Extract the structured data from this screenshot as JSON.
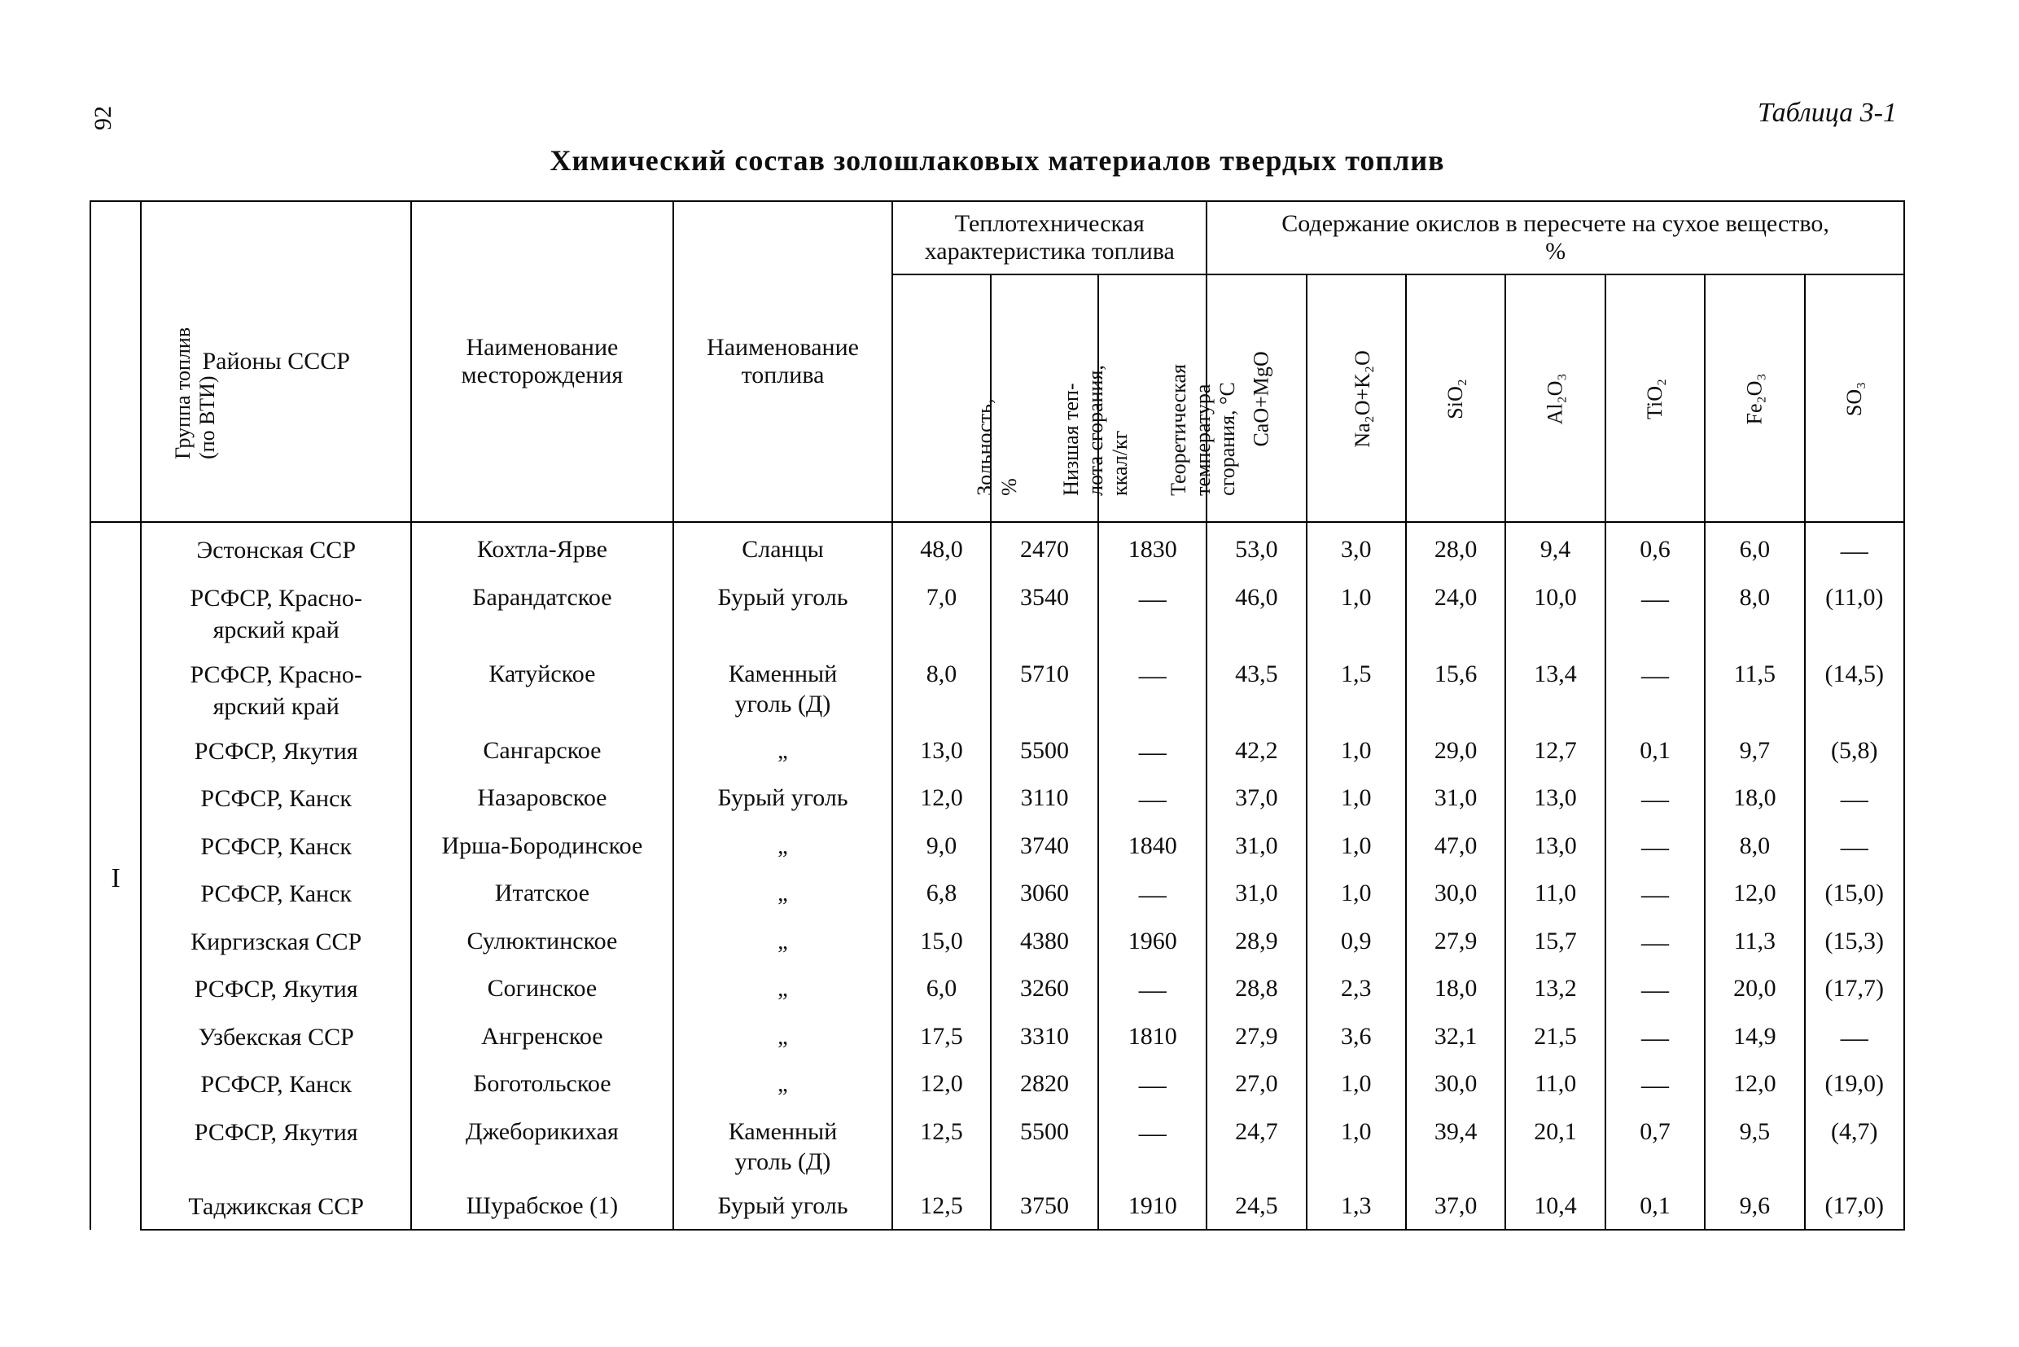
{
  "page_number": "92",
  "table_label": "Таблица 3-1",
  "title": "Химический состав золошлаковых материалов твердых топлив",
  "header": {
    "group": "Группа топлив\\n(по ВТИ)",
    "region": "Районы СССР",
    "deposit": "Наименование\\nместорождения",
    "fuel": "Наименование\\nтоплива",
    "thermal_group": "Теплотехническая\\nхарактеристика топлива",
    "oxide_group": "Содержание окислов в пересчете на сухое вещество,\\n%",
    "ash": "Зольность,\\n%",
    "lhv": "Низшая теп-\\nлота сгорания,\\nккал/кг",
    "temp": "Теоретическая\\nтемпература\\nсгорания, °С",
    "ox1": "CaO+MgO",
    "ox2": "Na₂O+K₂O",
    "ox3": "SiO₂",
    "ox4": "Al₂O₃",
    "ox5": "TiO₂",
    "ox6": "Fe₂O₃",
    "ox7": "SO₃"
  },
  "group_label": "I",
  "rows": [
    {
      "region": "Эстонская ССР",
      "deposit": "Кохтла-Ярве",
      "fuel": "Сланцы",
      "ash": "48,0",
      "lhv": "2470",
      "temp": "1830",
      "ox": [
        "53,0",
        "3,0",
        "28,0",
        "9,4",
        "0,6",
        "6,0",
        "—"
      ]
    },
    {
      "region": "РСФСР, Красно-\\nярский край",
      "deposit": "Барандатское",
      "fuel": "Бурый уголь",
      "ash": "7,0",
      "lhv": "3540",
      "temp": "—",
      "ox": [
        "46,0",
        "1,0",
        "24,0",
        "10,0",
        "—",
        "8,0",
        "(11,0)"
      ]
    },
    {
      "region": "РСФСР, Красно-\\nярский край",
      "deposit": "Катуйское",
      "fuel": "Каменный\\nуголь (Д)",
      "ash": "8,0",
      "lhv": "5710",
      "temp": "—",
      "ox": [
        "43,5",
        "1,5",
        "15,6",
        "13,4",
        "—",
        "11,5",
        "(14,5)"
      ]
    },
    {
      "region": "РСФСР, Якутия",
      "deposit": "Сангарское",
      "fuel": "„",
      "ash": "13,0",
      "lhv": "5500",
      "temp": "—",
      "ox": [
        "42,2",
        "1,0",
        "29,0",
        "12,7",
        "0,1",
        "9,7",
        "(5,8)"
      ]
    },
    {
      "region": "РСФСР, Канск",
      "deposit": "Назаровское",
      "fuel": "Бурый уголь",
      "ash": "12,0",
      "lhv": "3110",
      "temp": "—",
      "ox": [
        "37,0",
        "1,0",
        "31,0",
        "13,0",
        "—",
        "18,0",
        "—"
      ]
    },
    {
      "region": "РСФСР, Канск",
      "deposit": "Ирша-Бородинское",
      "fuel": "„",
      "ash": "9,0",
      "lhv": "3740",
      "temp": "1840",
      "ox": [
        "31,0",
        "1,0",
        "47,0",
        "13,0",
        "—",
        "8,0",
        "—"
      ]
    },
    {
      "region": "РСФСР, Канск",
      "deposit": "Итатское",
      "fuel": "„",
      "ash": "6,8",
      "lhv": "3060",
      "temp": "—",
      "ox": [
        "31,0",
        "1,0",
        "30,0",
        "11,0",
        "—",
        "12,0",
        "(15,0)"
      ]
    },
    {
      "region": "Киргизская ССР",
      "deposit": "Сулюктинское",
      "fuel": "„",
      "ash": "15,0",
      "lhv": "4380",
      "temp": "1960",
      "ox": [
        "28,9",
        "0,9",
        "27,9",
        "15,7",
        "—",
        "11,3",
        "(15,3)"
      ]
    },
    {
      "region": "РСФСР, Якутия",
      "deposit": "Согинское",
      "fuel": "„",
      "ash": "6,0",
      "lhv": "3260",
      "temp": "—",
      "ox": [
        "28,8",
        "2,3",
        "18,0",
        "13,2",
        "—",
        "20,0",
        "(17,7)"
      ]
    },
    {
      "region": "Узбекская ССР",
      "deposit": "Ангренское",
      "fuel": "„",
      "ash": "17,5",
      "lhv": "3310",
      "temp": "1810",
      "ox": [
        "27,9",
        "3,6",
        "32,1",
        "21,5",
        "—",
        "14,9",
        "—"
      ]
    },
    {
      "region": "РСФСР, Канск",
      "deposit": "Боготольское",
      "fuel": "„",
      "ash": "12,0",
      "lhv": "2820",
      "temp": "—",
      "ox": [
        "27,0",
        "1,0",
        "30,0",
        "11,0",
        "—",
        "12,0",
        "(19,0)"
      ]
    },
    {
      "region": "РСФСР, Якутия",
      "deposit": "Джеборикихая",
      "fuel": "Каменный\\nуголь (Д)",
      "ash": "12,5",
      "lhv": "5500",
      "temp": "—",
      "ox": [
        "24,7",
        "1,0",
        "39,4",
        "20,1",
        "0,7",
        "9,5",
        "(4,7)"
      ]
    },
    {
      "region": "Таджикская ССР",
      "deposit": "Шурабское (1)",
      "fuel": "Бурый уголь",
      "ash": "12,5",
      "lhv": "3750",
      "temp": "1910",
      "ox": [
        "24,5",
        "1,3",
        "37,0",
        "10,4",
        "0,1",
        "9,6",
        "(17,0)"
      ]
    }
  ]
}
